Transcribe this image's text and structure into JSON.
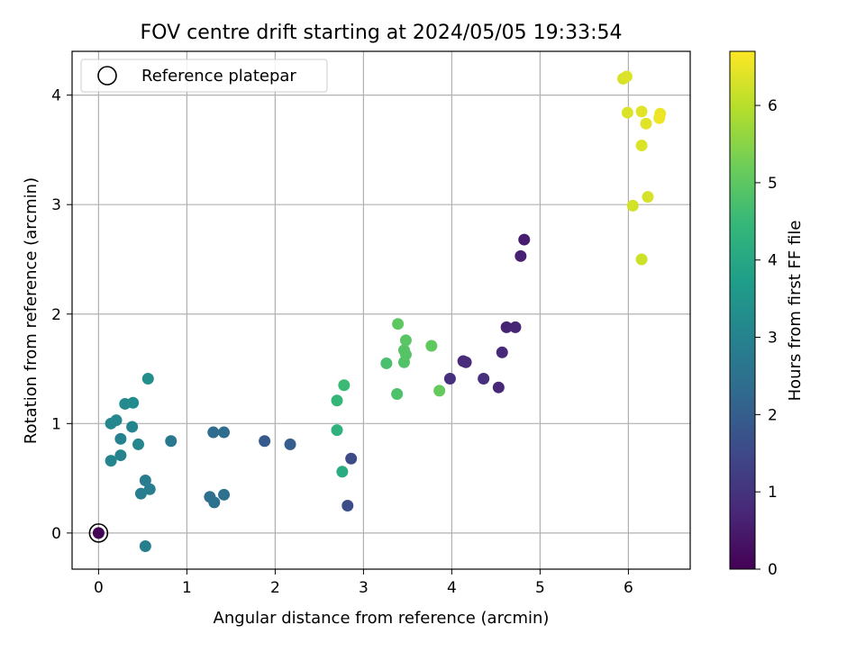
{
  "chart_data": {
    "type": "scatter",
    "title": "FOV centre drift starting at 2024/05/05 19:33:54",
    "xlabel": "Angular distance from reference (arcmin)",
    "ylabel": "Rotation from reference (arcmin)",
    "xlim": [
      -0.3,
      6.7
    ],
    "ylim": [
      -0.33,
      4.4
    ],
    "x_ticks": [
      0,
      1,
      2,
      3,
      4,
      5,
      6
    ],
    "y_ticks": [
      0,
      1,
      2,
      3,
      4
    ],
    "grid": true,
    "legend": {
      "position": "top-left",
      "entries": [
        "Reference platepar"
      ]
    },
    "reference_point": {
      "x": 0,
      "y": 0
    },
    "colorbar": {
      "label": "Hours from first FF file",
      "colormap": "viridis",
      "range": [
        0,
        6.7
      ],
      "ticks": [
        0,
        1,
        2,
        3,
        4,
        5,
        6
      ]
    },
    "points": [
      {
        "x": 0.0,
        "y": 0.0,
        "h": 0.05
      },
      {
        "x": 4.82,
        "y": 2.68,
        "h": 0.55
      },
      {
        "x": 4.78,
        "y": 2.53,
        "h": 0.6
      },
      {
        "x": 4.62,
        "y": 1.88,
        "h": 0.65
      },
      {
        "x": 4.72,
        "y": 1.88,
        "h": 0.7
      },
      {
        "x": 4.57,
        "y": 1.65,
        "h": 0.75
      },
      {
        "x": 4.13,
        "y": 1.57,
        "h": 0.8
      },
      {
        "x": 4.16,
        "y": 1.56,
        "h": 0.85
      },
      {
        "x": 3.98,
        "y": 1.41,
        "h": 0.9
      },
      {
        "x": 4.36,
        "y": 1.41,
        "h": 0.9
      },
      {
        "x": 4.53,
        "y": 1.33,
        "h": 0.75
      },
      {
        "x": 2.86,
        "y": 0.68,
        "h": 1.55
      },
      {
        "x": 2.82,
        "y": 0.25,
        "h": 1.6
      },
      {
        "x": 1.88,
        "y": 0.84,
        "h": 1.9
      },
      {
        "x": 2.17,
        "y": 0.81,
        "h": 2.0
      },
      {
        "x": 1.3,
        "y": 0.92,
        "h": 2.35
      },
      {
        "x": 1.42,
        "y": 0.92,
        "h": 2.35
      },
      {
        "x": 1.26,
        "y": 0.33,
        "h": 2.45
      },
      {
        "x": 1.31,
        "y": 0.28,
        "h": 2.5
      },
      {
        "x": 1.42,
        "y": 0.35,
        "h": 2.5
      },
      {
        "x": 0.82,
        "y": 0.84,
        "h": 2.7
      },
      {
        "x": 0.53,
        "y": 0.48,
        "h": 2.8
      },
      {
        "x": 0.48,
        "y": 0.36,
        "h": 2.85
      },
      {
        "x": 0.58,
        "y": 0.4,
        "h": 2.85
      },
      {
        "x": 0.53,
        "y": -0.12,
        "h": 2.9
      },
      {
        "x": 0.25,
        "y": 0.86,
        "h": 2.95
      },
      {
        "x": 0.25,
        "y": 0.71,
        "h": 3.0
      },
      {
        "x": 0.14,
        "y": 0.66,
        "h": 3.05
      },
      {
        "x": 0.38,
        "y": 0.97,
        "h": 3.05
      },
      {
        "x": 0.45,
        "y": 0.81,
        "h": 3.1
      },
      {
        "x": 0.14,
        "y": 1.0,
        "h": 3.1
      },
      {
        "x": 0.2,
        "y": 1.03,
        "h": 3.15
      },
      {
        "x": 0.3,
        "y": 1.18,
        "h": 3.2
      },
      {
        "x": 0.39,
        "y": 1.19,
        "h": 3.25
      },
      {
        "x": 0.56,
        "y": 1.41,
        "h": 3.3
      },
      {
        "x": 2.76,
        "y": 0.56,
        "h": 4.1
      },
      {
        "x": 2.7,
        "y": 0.94,
        "h": 4.3
      },
      {
        "x": 2.7,
        "y": 1.21,
        "h": 4.45
      },
      {
        "x": 2.78,
        "y": 1.35,
        "h": 4.55
      },
      {
        "x": 3.26,
        "y": 1.55,
        "h": 4.75
      },
      {
        "x": 3.38,
        "y": 1.27,
        "h": 4.8
      },
      {
        "x": 3.46,
        "y": 1.56,
        "h": 4.85
      },
      {
        "x": 3.46,
        "y": 1.67,
        "h": 4.9
      },
      {
        "x": 3.48,
        "y": 1.63,
        "h": 4.9
      },
      {
        "x": 3.48,
        "y": 1.76,
        "h": 4.95
      },
      {
        "x": 3.39,
        "y": 1.91,
        "h": 5.0
      },
      {
        "x": 3.77,
        "y": 1.71,
        "h": 5.05
      },
      {
        "x": 3.86,
        "y": 1.3,
        "h": 5.1
      },
      {
        "x": 6.15,
        "y": 2.5,
        "h": 6.2
      },
      {
        "x": 6.05,
        "y": 2.99,
        "h": 6.25
      },
      {
        "x": 6.22,
        "y": 3.07,
        "h": 6.3
      },
      {
        "x": 6.15,
        "y": 3.54,
        "h": 6.35
      },
      {
        "x": 5.99,
        "y": 3.84,
        "h": 6.35
      },
      {
        "x": 6.15,
        "y": 3.85,
        "h": 6.4
      },
      {
        "x": 6.2,
        "y": 3.74,
        "h": 6.4
      },
      {
        "x": 6.36,
        "y": 3.83,
        "h": 6.5
      },
      {
        "x": 6.35,
        "y": 3.79,
        "h": 6.55
      },
      {
        "x": 5.94,
        "y": 4.15,
        "h": 6.3
      },
      {
        "x": 5.98,
        "y": 4.17,
        "h": 6.35
      }
    ]
  }
}
